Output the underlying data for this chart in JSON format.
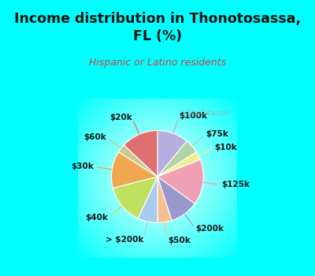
{
  "title": "Income distribution in Thonotosassa,\nFL (%)",
  "subtitle": "Hispanic or Latino residents",
  "title_color": "#111111",
  "subtitle_color": "#cc4444",
  "bg_cyan": "#00ffff",
  "bg_chart_center": "#f0faf5",
  "labels": [
    "$100k",
    "$75k",
    "$10k",
    "$125k",
    "$200k",
    "$50k",
    "> $200k",
    "$40k",
    "$30k",
    "$60k",
    "$20k"
  ],
  "values": [
    11,
    5,
    3,
    16,
    10,
    5,
    7,
    14,
    13,
    3,
    13
  ],
  "colors": [
    "#b8aede",
    "#b0d4a8",
    "#f0ef90",
    "#f0a0b4",
    "#9898cc",
    "#f8c090",
    "#a8ccf0",
    "#c0e060",
    "#f0a850",
    "#c8c890",
    "#e07070"
  ],
  "watermark": "City-Data.com",
  "label_fontsize": 7.5,
  "title_fontsize": 12.5,
  "subtitle_fontsize": 9
}
